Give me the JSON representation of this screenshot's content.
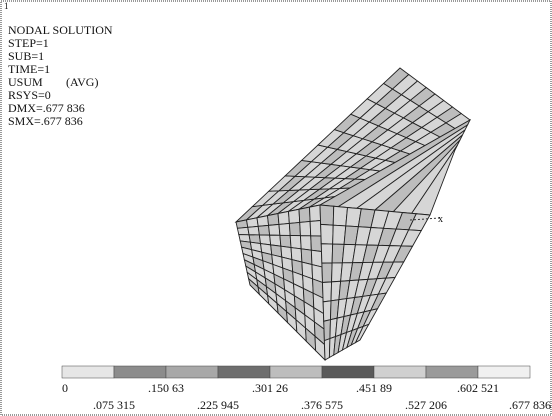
{
  "window_number": "1",
  "header": {
    "title": "NODAL  SOLUTION",
    "lines": [
      "STEP=1",
      "SUB=1",
      "TIME=1"
    ],
    "quantity": "USUM",
    "average": "(AVG)",
    "extra_lines": [
      "RSYS=0",
      "DMX=.677 836",
      "SMX=.677 836"
    ]
  },
  "axis_label": "x",
  "legend": {
    "upper_labels": [
      "0",
      ".150 63",
      ".301 26",
      ".451 89",
      ".602 521"
    ],
    "lower_labels": [
      ".075 315",
      ".225 945",
      ".376 575",
      ".527 206",
      ".677 836"
    ]
  }
}
